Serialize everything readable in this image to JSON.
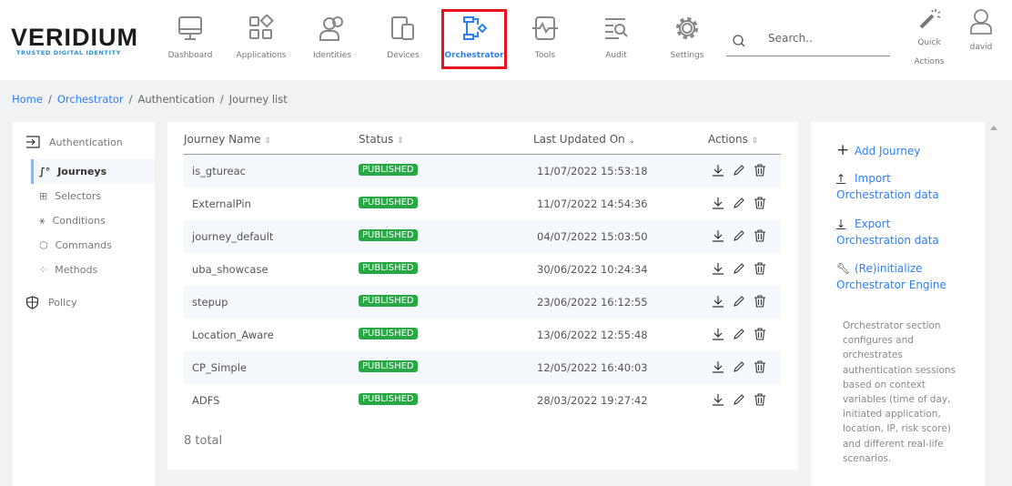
{
  "brand": {
    "name": "VERIDIUM",
    "tagline": "TRUSTED DIGITAL IDENTITY"
  },
  "nav": [
    {
      "label": "Dashboard",
      "icon": "monitor-icon"
    },
    {
      "label": "Applications",
      "icon": "apps-icon"
    },
    {
      "label": "Identities",
      "icon": "users-icon"
    },
    {
      "label": "Devices",
      "icon": "devices-icon"
    },
    {
      "label": "Orchestrator",
      "icon": "flow-icon",
      "active": true
    },
    {
      "label": "Tools",
      "icon": "tools-icon"
    },
    {
      "label": "Audit",
      "icon": "audit-icon"
    },
    {
      "label": "Settings",
      "icon": "gear-icon"
    }
  ],
  "search": {
    "placeholder": "Search..",
    "value": ""
  },
  "quick_actions": {
    "line1": "Quick",
    "line2": "Actions"
  },
  "user": {
    "name": "david"
  },
  "breadcrumb": [
    "Home",
    "Orchestrator",
    "Authentication",
    "Journey list"
  ],
  "sidebar": {
    "section": "Authentication",
    "items": [
      {
        "label": "Journeys",
        "active": true
      },
      {
        "label": "Selectors"
      },
      {
        "label": "Conditions"
      },
      {
        "label": "Commands"
      },
      {
        "label": "Methods"
      }
    ],
    "policy": "Policy"
  },
  "table": {
    "columns": [
      "Journey Name",
      "Status",
      "Last Updated On",
      "Actions"
    ],
    "rows": [
      {
        "name": "is_gtureac",
        "status": "PUBLISHED",
        "updated": "11/07/2022 15:53:18"
      },
      {
        "name": "ExternalPin",
        "status": "PUBLISHED",
        "updated": "11/07/2022 14:54:36"
      },
      {
        "name": "journey_default",
        "status": "PUBLISHED",
        "updated": "04/07/2022 15:03:50"
      },
      {
        "name": "uba_showcase",
        "status": "PUBLISHED",
        "updated": "30/06/2022 10:24:34"
      },
      {
        "name": "stepup",
        "status": "PUBLISHED",
        "updated": "23/06/2022 16:12:55"
      },
      {
        "name": "Location_Aware",
        "status": "PUBLISHED",
        "updated": "13/06/2022 12:55:48"
      },
      {
        "name": "CP_Simple",
        "status": "PUBLISHED",
        "updated": "12/05/2022 16:40:03"
      },
      {
        "name": "ADFS",
        "status": "PUBLISHED",
        "updated": "28/03/2022 19:27:42"
      }
    ],
    "total": "8 total"
  },
  "actions_panel": {
    "add": "Add Journey",
    "import_1": "Import",
    "import_2": "Orchestration data",
    "export_1": "Export",
    "export_2": "Orchestration data",
    "reinit_1": "(Re)initialize",
    "reinit_2": "Orchestrator Engine",
    "description": "Orchestrator section configures and orchestrates authentication sessions based on context variables (time of day, initiated application, location, IP, risk score) and different real-life scenarios."
  },
  "colors": {
    "accent": "#2d7ff9",
    "published": "#28a745",
    "highlight": "#e8121c"
  }
}
